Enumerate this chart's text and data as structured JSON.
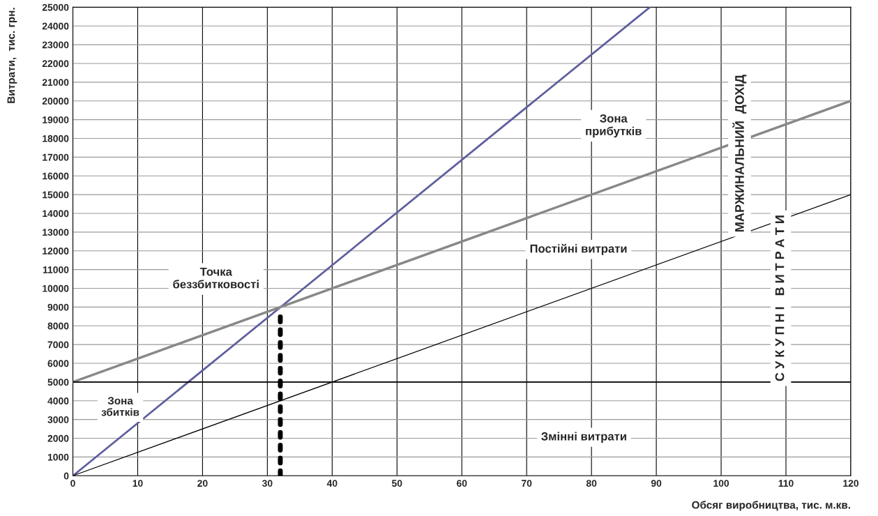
{
  "chart_data": {
    "type": "line",
    "xlabel": "Обсяг виробництва, тис. м.кв.",
    "ylabel": "Витрати,  тис. грн.",
    "series": [
      {
        "color": "#5e5e9e",
        "x": [
          0,
          89
        ],
        "values": [
          0,
          25000
        ]
      },
      {
        "color": "#888888",
        "x": [
          0,
          120
        ],
        "values": [
          5000,
          20000
        ]
      },
      {
        "color": "#000000",
        "x": [
          0,
          120
        ],
        "values": [
          0,
          15000
        ]
      },
      {
        "color": "#000000",
        "x": [
          0,
          120
        ],
        "values": [
          5000,
          5000
        ]
      },
      {
        "color": "#000000",
        "x": [
          32,
          32
        ],
        "values": [
          0,
          8900
        ],
        "line_style": "dotted"
      }
    ],
    "xlim": [
      0,
      120
    ],
    "xticks": [
      0,
      10,
      20,
      30,
      40,
      50,
      60,
      70,
      80,
      90,
      100,
      110,
      120
    ],
    "ylim": [
      0,
      25000
    ],
    "yticks": [
      0,
      1000,
      2000,
      3000,
      4000,
      5000,
      6000,
      7000,
      8000,
      9000,
      10000,
      11000,
      12000,
      13000,
      14000,
      15000,
      16000,
      17000,
      18000,
      19000,
      20000,
      21000,
      22000,
      23000,
      24000,
      25000
    ],
    "grid": true,
    "legend": false,
    "annotations": [
      "Точка\nбеззбитковості",
      "Зона\nприбутків",
      "Зона\nзбитків",
      "Постійні витрати",
      "Змінні витрати",
      "МАРЖИНАЛЬНИЙ  ДОХІД",
      "С У К У П Н І   В И Т Р А Т И"
    ]
  }
}
